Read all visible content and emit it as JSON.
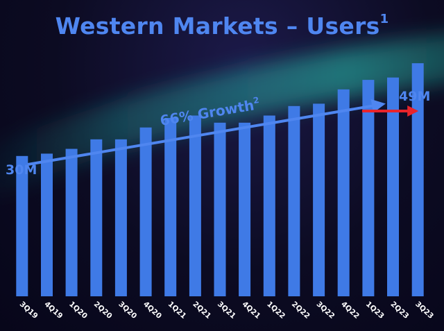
{
  "slide": {
    "title": "Western Markets – Users",
    "title_sup": "1"
  },
  "chart_data": {
    "type": "bar",
    "title": "Western Markets – Users",
    "categories": [
      "3Q19",
      "4Q19",
      "1Q20",
      "2Q20",
      "3Q20",
      "4Q20",
      "1Q21",
      "2Q21",
      "3Q21",
      "4Q21",
      "1Q22",
      "2Q22",
      "3Q22",
      "4Q22",
      "1Q23",
      "2Q23",
      "3Q23"
    ],
    "values": [
      29.5,
      30,
      31,
      33,
      33,
      35.5,
      37.5,
      38,
      36.5,
      36.5,
      38,
      40,
      40.5,
      43.5,
      45.5,
      46,
      49
    ],
    "ylim": [
      0,
      55
    ],
    "grid": false,
    "bar_color": "#3f7ae6",
    "annotations": {
      "start_label": "30M",
      "end_label": "49M",
      "growth_label": "66% Growth",
      "growth_sup": "2",
      "text_color": "#4f86f0",
      "arrow_color": "#4f86f0",
      "end_arrow_color": "#e8242b"
    }
  }
}
